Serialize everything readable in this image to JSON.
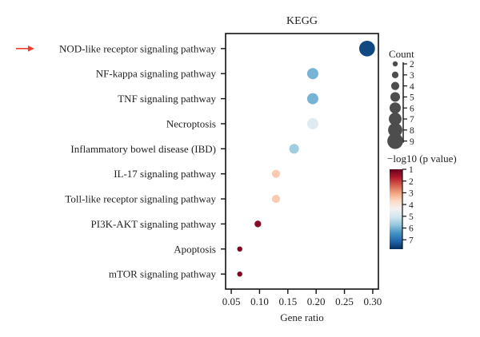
{
  "chart_data": {
    "type": "scatter",
    "title": "KEGG",
    "xlabel": "Gene ratio",
    "ylabel": "",
    "xlim": [
      0.04,
      0.31
    ],
    "x_ticks": [
      "0.05",
      "0.10",
      "0.15",
      "0.20",
      "0.25",
      "0.30"
    ],
    "highlight_arrow_on": "NOD-like receptor signaling pathway",
    "highlight_color": "#e8412c",
    "points": [
      {
        "pathway": "NOD-like receptor signaling pathway",
        "gene_ratio": 0.29,
        "count": 9,
        "neg_log10_p": 7.5
      },
      {
        "pathway": "NF-kappa signaling pathway",
        "gene_ratio": 0.194,
        "count": 6,
        "neg_log10_p": 6.0
      },
      {
        "pathway": "TNF signaling pathway",
        "gene_ratio": 0.194,
        "count": 6,
        "neg_log10_p": 6.0
      },
      {
        "pathway": "Necroptosis",
        "gene_ratio": 0.194,
        "count": 6,
        "neg_log10_p": 4.8
      },
      {
        "pathway": "Inflammatory bowel disease (IBD)",
        "gene_ratio": 0.161,
        "count": 5,
        "neg_log10_p": 5.6
      },
      {
        "pathway": "IL-17 signaling pathway",
        "gene_ratio": 0.129,
        "count": 4,
        "neg_log10_p": 3.5
      },
      {
        "pathway": "Toll-like receptor signaling pathway",
        "gene_ratio": 0.129,
        "count": 4,
        "neg_log10_p": 3.5
      },
      {
        "pathway": "PI3K-AKT signaling pathway",
        "gene_ratio": 0.097,
        "count": 3,
        "neg_log10_p": 1.3
      },
      {
        "pathway": "Apoptosis",
        "gene_ratio": 0.065,
        "count": 2,
        "neg_log10_p": 1.2
      },
      {
        "pathway": "mTOR signaling pathway",
        "gene_ratio": 0.065,
        "count": 2,
        "neg_log10_p": 1.2
      }
    ],
    "size_legend": {
      "title": "Count",
      "values": [
        2,
        3,
        4,
        5,
        6,
        7,
        8,
        9
      ]
    },
    "color_legend": {
      "title": "−log10 (p value)",
      "range": [
        1,
        7.8
      ],
      "ticks": [
        1,
        2,
        3,
        4,
        5,
        6,
        7
      ],
      "stops": [
        "#67001f",
        "#b2182b",
        "#d6604d",
        "#f4a582",
        "#fddbc7",
        "#f2f2f2",
        "#d1e5f0",
        "#92c5de",
        "#4393c3",
        "#2166ac",
        "#053061"
      ]
    },
    "marker_color_point_fill": "#4d4d4d"
  }
}
